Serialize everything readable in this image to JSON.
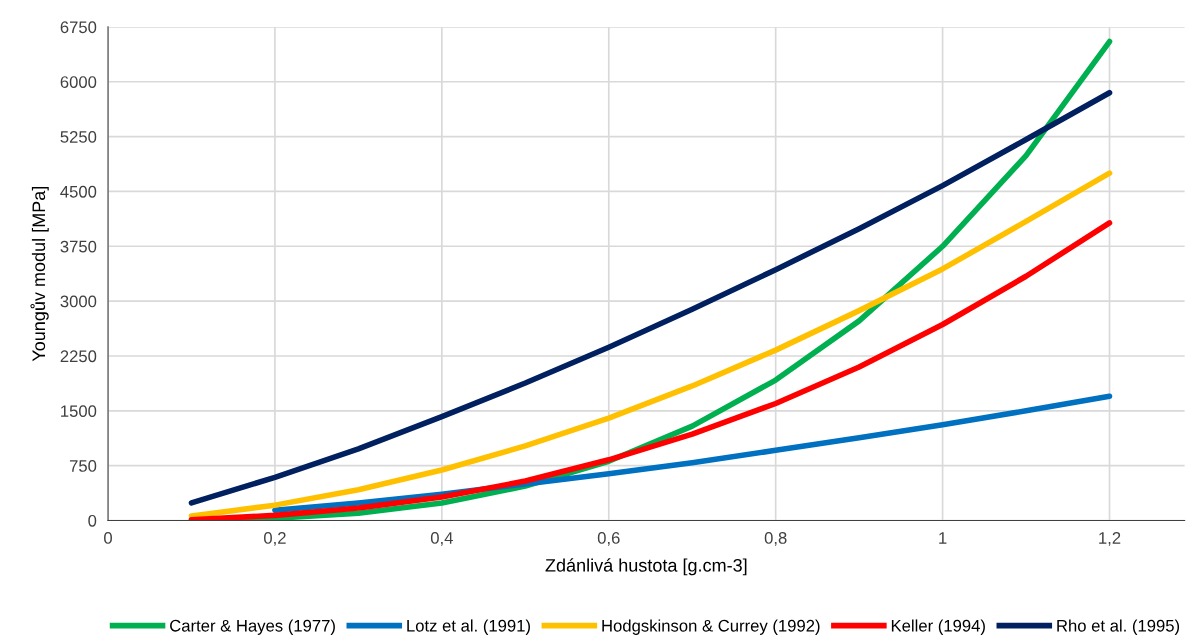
{
  "chart_data": {
    "type": "line",
    "xlabel": "Zdánlivá hustota [g.cm-3]",
    "ylabel": "Youngův modul [MPa]",
    "x": [
      0.1,
      0.2,
      0.3,
      0.4,
      0.5,
      0.6,
      0.7,
      0.8,
      0.9,
      1.0,
      1.1,
      1.2
    ],
    "series": [
      {
        "name": "Carter & Hayes (1977)",
        "color": "#00b050",
        "values": [
          0,
          30,
          100,
          240,
          470,
          810,
          1290,
          1920,
          2730,
          3750,
          4990,
          6550
        ]
      },
      {
        "name": "Lotz et al. (1991)",
        "color": "#0070c0",
        "values": [
          null,
          140,
          240,
          360,
          500,
          640,
          790,
          960,
          1130,
          1310,
          1500,
          1700
        ]
      },
      {
        "name": "Hodgskinson & Currey (1992)",
        "color": "#ffc000",
        "values": [
          60,
          210,
          420,
          690,
          1020,
          1400,
          1840,
          2330,
          2870,
          3440,
          4090,
          4750
        ]
      },
      {
        "name": "Keller (1994)",
        "color": "#ff0000",
        "values": [
          10,
          70,
          170,
          320,
          540,
          830,
          1180,
          1600,
          2100,
          2680,
          3340,
          4070
        ]
      },
      {
        "name": "Rho et al. (1995)",
        "color": "#002060",
        "values": [
          240,
          590,
          980,
          1420,
          1880,
          2370,
          2890,
          3430,
          3990,
          4580,
          5210,
          5850
        ]
      }
    ],
    "xlim": [
      0,
      1.29
    ],
    "ylim": [
      0,
      6750
    ],
    "xticks": [
      0,
      {
        "value": 0.2,
        "label": "0,2"
      },
      {
        "value": 0.4,
        "label": "0,4"
      },
      {
        "value": 0.6,
        "label": "0,6"
      },
      {
        "value": 0.8,
        "label": "0,8"
      },
      1,
      {
        "value": 1.2,
        "label": "1,2"
      }
    ],
    "yticks": [
      0,
      750,
      1500,
      2250,
      3000,
      3750,
      4500,
      5250,
      6000,
      6750
    ],
    "grid": true,
    "legend": "bottom",
    "marker": "none",
    "line_style": "solid"
  }
}
